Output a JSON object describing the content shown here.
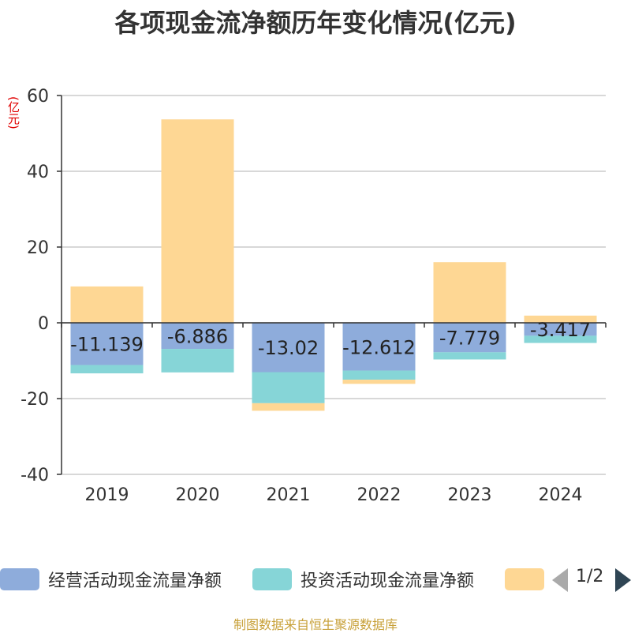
{
  "title": "各项现金流净额历年变化情况(亿元)",
  "source": "制图数据来自恒生聚源数据库",
  "colors": {
    "grid": "#cccccc",
    "axis": "#333333",
    "tick_text": "#333333",
    "label_text": "#222222"
  },
  "legend": {
    "page_indicator": "1/2",
    "prev_icon": "triangle-left",
    "next_icon": "triangle-right"
  },
  "chart_data": {
    "type": "bar",
    "stacked": true,
    "unit": "(亿元)",
    "categories": [
      "2019",
      "2020",
      "2021",
      "2022",
      "2023",
      "2024"
    ],
    "ylim": [
      -40,
      60
    ],
    "yticks": [
      -40,
      -20,
      0,
      20,
      40,
      60
    ],
    "series": [
      {
        "name": "经营活动现金流量净额",
        "color": "#8eacdb",
        "values": [
          -11.139,
          -6.886,
          -13.02,
          -12.612,
          -7.779,
          -3.417
        ],
        "labels": [
          "-11.139",
          "-6.886",
          "-13.02",
          "-12.612",
          "-7.779",
          "-3.417"
        ]
      },
      {
        "name": "投资活动现金流量净额",
        "color": "#86d5d7",
        "values": [
          -2.2,
          -6.2,
          -8.2,
          -2.4,
          -1.9,
          -1.9
        ]
      },
      {
        "name": "",
        "color": "#fed794",
        "values": [
          9.6,
          53.7,
          -2.0,
          -1.1,
          16.0,
          1.9
        ]
      }
    ]
  }
}
